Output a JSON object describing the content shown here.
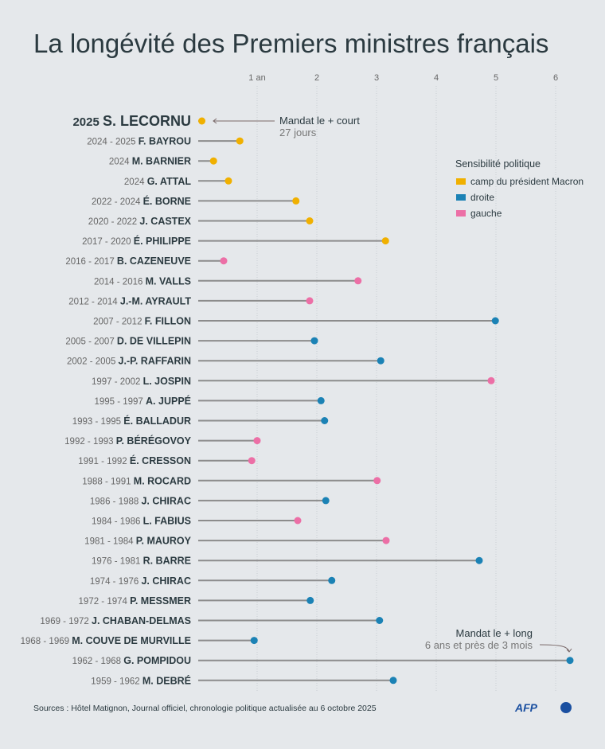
{
  "title": "La longévité des Premiers ministres français",
  "source": "Sources : Hôtel Matignon, Journal officiel, chronologie politique actualisée au 6 octobre 2025",
  "logo": "AFP",
  "chart_data": {
    "type": "lollipop",
    "xlim": [
      0,
      6.4
    ],
    "x_ticks": [
      {
        "value": 1,
        "label": "1 an"
      },
      {
        "value": 2,
        "label": "2"
      },
      {
        "value": 3,
        "label": "3"
      },
      {
        "value": 4,
        "label": "4"
      },
      {
        "value": 5,
        "label": "5"
      },
      {
        "value": 6,
        "label": "6"
      }
    ],
    "grid": "vertical dotted",
    "legend": {
      "title": "Sensibilité politique",
      "position": "top-right",
      "items": [
        {
          "key": "macron",
          "label": "camp du président Macron",
          "color": "#f0b000"
        },
        {
          "key": "droite",
          "label": "droite",
          "color": "#1b82b5"
        },
        {
          "key": "gauche",
          "label": "gauche",
          "color": "#ec6fa6"
        }
      ]
    },
    "rows": [
      {
        "period": "2025",
        "name": "S. LECORNU",
        "years": 0.074,
        "camp": "macron"
      },
      {
        "period": "2024 - 2025",
        "name": "F. BAYROU",
        "years": 0.71,
        "camp": "macron"
      },
      {
        "period": "2024",
        "name": "M. BARNIER",
        "years": 0.27,
        "camp": "macron"
      },
      {
        "period": "2024",
        "name": "G. ATTAL",
        "years": 0.52,
        "camp": "macron"
      },
      {
        "period": "2022 - 2024",
        "name": "É. BORNE",
        "years": 1.65,
        "camp": "macron"
      },
      {
        "period": "2020 - 2022",
        "name": "J. CASTEX",
        "years": 1.88,
        "camp": "macron"
      },
      {
        "period": "2017 - 2020",
        "name": "É. PHILIPPE",
        "years": 3.15,
        "camp": "macron"
      },
      {
        "period": "2016 - 2017",
        "name": "B. CAZENEUVE",
        "years": 0.44,
        "camp": "gauche"
      },
      {
        "period": "2014 - 2016",
        "name": "M. VALLS",
        "years": 2.69,
        "camp": "gauche"
      },
      {
        "period": "2012 - 2014",
        "name": "J.-M. AYRAULT",
        "years": 1.88,
        "camp": "gauche"
      },
      {
        "period": "2007 - 2012",
        "name": "F. FILLON",
        "years": 4.99,
        "camp": "droite"
      },
      {
        "period": "2005 - 2007",
        "name": "D. DE VILLEPIN",
        "years": 1.96,
        "camp": "droite"
      },
      {
        "period": "2002 - 2005",
        "name": "J.-P. RAFFARIN",
        "years": 3.07,
        "camp": "droite"
      },
      {
        "period": "1997 - 2002",
        "name": "L. JOSPIN",
        "years": 4.92,
        "camp": "gauche"
      },
      {
        "period": "1995 - 1997",
        "name": "A. JUPPÉ",
        "years": 2.07,
        "camp": "droite"
      },
      {
        "period": "1993 - 1995",
        "name": "É. BALLADUR",
        "years": 2.13,
        "camp": "droite"
      },
      {
        "period": "1992 - 1993",
        "name": "P. BÉRÉGOVOY",
        "years": 1.0,
        "camp": "gauche"
      },
      {
        "period": "1991 - 1992",
        "name": "É. CRESSON",
        "years": 0.91,
        "camp": "gauche"
      },
      {
        "period": "1988 - 1991",
        "name": "M. ROCARD",
        "years": 3.01,
        "camp": "gauche"
      },
      {
        "period": "1986 - 1988",
        "name": "J. CHIRAC",
        "years": 2.15,
        "camp": "droite"
      },
      {
        "period": "1984 - 1986",
        "name": "L. FABIUS",
        "years": 1.68,
        "camp": "gauche"
      },
      {
        "period": "1981 - 1984",
        "name": "P. MAUROY",
        "years": 3.16,
        "camp": "gauche"
      },
      {
        "period": "1976 - 1981",
        "name": "R. BARRE",
        "years": 4.72,
        "camp": "droite"
      },
      {
        "period": "1974 - 1976",
        "name": "J. CHIRAC",
        "years": 2.25,
        "camp": "droite"
      },
      {
        "period": "1972 - 1974",
        "name": "P. MESSMER",
        "years": 1.89,
        "camp": "droite"
      },
      {
        "period": "1969 - 1972",
        "name": "J. CHABAN-DELMAS",
        "years": 3.05,
        "camp": "droite"
      },
      {
        "period": "1968 - 1969",
        "name": "M. COUVE DE MURVILLE",
        "years": 0.95,
        "camp": "droite"
      },
      {
        "period": "1962 - 1968",
        "name": "G. POMPIDOU",
        "years": 6.24,
        "camp": "droite"
      },
      {
        "period": "1959 - 1962",
        "name": "M. DEBRÉ",
        "years": 3.28,
        "camp": "droite"
      }
    ],
    "annotations": {
      "shortest": {
        "title": "Mandat le + court",
        "detail": "27 jours"
      },
      "longest": {
        "title": "Mandat le + long",
        "detail": "6 ans et près de 3 mois"
      }
    }
  }
}
